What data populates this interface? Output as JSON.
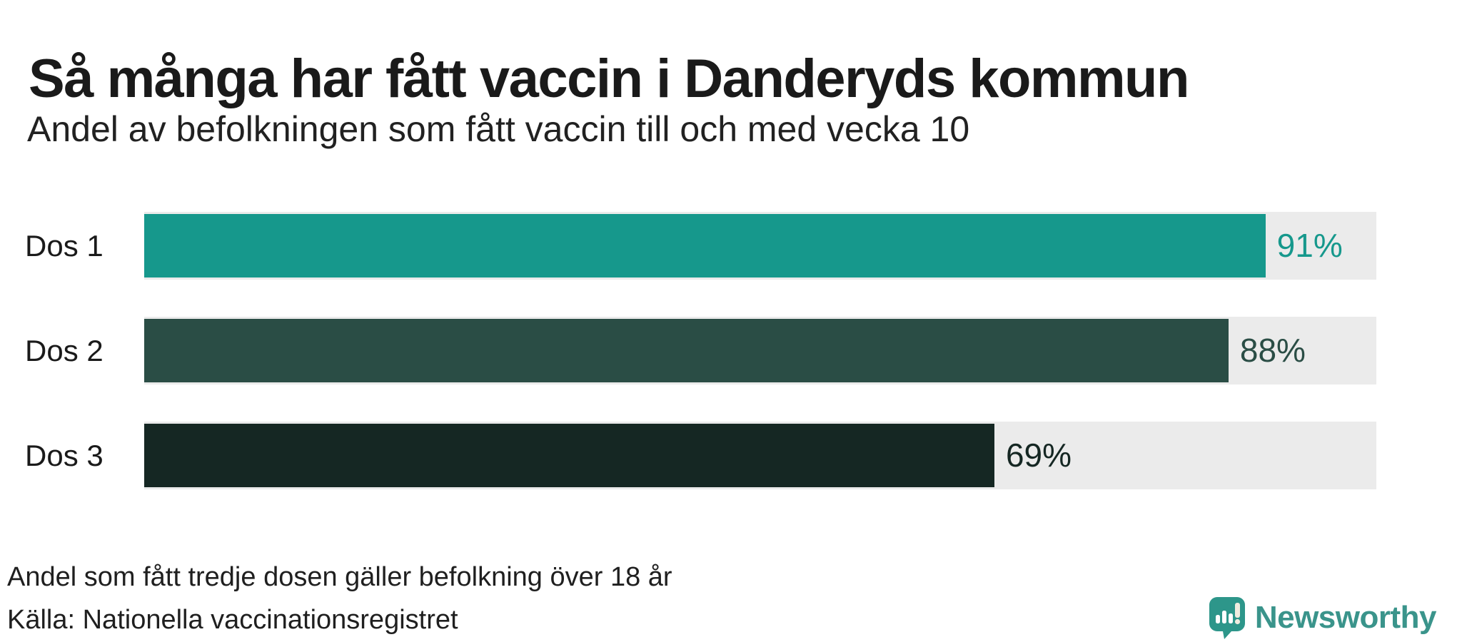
{
  "header": {
    "title": "Så många har fått vaccin i Danderyds kommun",
    "subtitle": "Andel av befolkningen som fått vaccin till och med vecka 10"
  },
  "chart_data": {
    "type": "bar",
    "orientation": "horizontal",
    "categories": [
      "Dos 1",
      "Dos 2",
      "Dos 3"
    ],
    "values": [
      91,
      88,
      69
    ],
    "value_labels": [
      "91%",
      "88%",
      "69%"
    ],
    "bar_colors": [
      "#16988C",
      "#2A4D45",
      "#152723"
    ],
    "track_color": "#EBEBEB",
    "xlim": [
      0,
      100
    ],
    "grid": "off",
    "value_label_position": "outside-right",
    "value_label_colors_match_bars": true
  },
  "footer": {
    "footnote": "Andel som fått tredje dosen gäller befolkning över 18 år",
    "source": "Källa: Nationella vaccinationsregistret"
  },
  "logo": {
    "text": "Newsworthy",
    "wordmark_color": "#3A948B",
    "icon": "newsworthy-speech-bubble-chart-icon",
    "icon_color": "#2D968A",
    "icon_accent_color": "#F1ECDF"
  }
}
